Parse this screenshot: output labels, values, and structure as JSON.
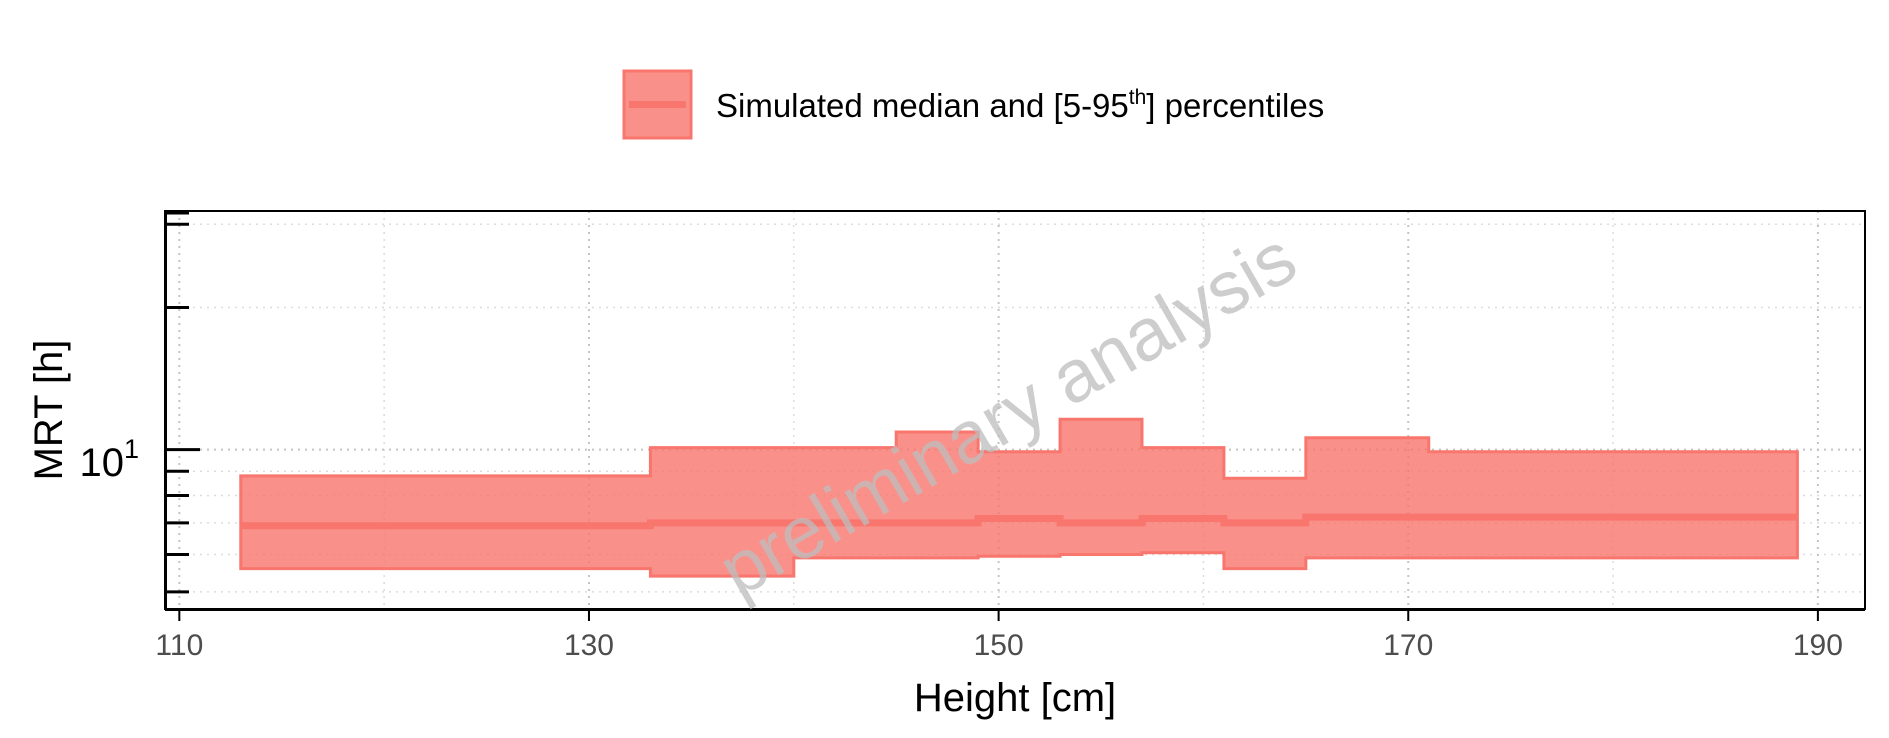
{
  "chart_data": {
    "type": "area",
    "xlabel": "Height [cm]",
    "ylabel": "MRT [h]",
    "xlim": [
      109.3,
      192.3
    ],
    "xticks": [
      "110",
      "130",
      "150",
      "170",
      "190"
    ],
    "xtick_values": [
      110,
      130,
      150,
      170,
      190
    ],
    "yscale": "log",
    "ylim": [
      4.6,
      32
    ],
    "ytick_label": {
      "base": "10",
      "exponent": "1"
    },
    "ytick_value": 10,
    "grid": true,
    "legend": {
      "position": "top",
      "text_before": "Simulated median and [5-95",
      "superscript": "th",
      "text_after": "] percentiles"
    },
    "watermark": "preliminary analysis",
    "colors": {
      "band_fill": "#f8766d",
      "band_line": "#f8766d"
    },
    "series": [
      {
        "name": "Simulated median and [5-95th] percentiles",
        "steps": [
          {
            "x0": 113,
            "x1": 133,
            "lower": 5.6,
            "median": 6.9,
            "upper": 8.8
          },
          {
            "x0": 133,
            "x1": 140,
            "lower": 5.4,
            "median": 7.0,
            "upper": 10.1
          },
          {
            "x0": 140,
            "x1": 145,
            "lower": 5.9,
            "median": 7.0,
            "upper": 10.1
          },
          {
            "x0": 145,
            "x1": 149,
            "lower": 5.9,
            "median": 7.0,
            "upper": 10.9
          },
          {
            "x0": 149,
            "x1": 153,
            "lower": 5.95,
            "median": 7.15,
            "upper": 9.9
          },
          {
            "x0": 153,
            "x1": 157,
            "lower": 6.0,
            "median": 7.0,
            "upper": 11.6
          },
          {
            "x0": 157,
            "x1": 161,
            "lower": 6.05,
            "median": 7.15,
            "upper": 10.1
          },
          {
            "x0": 161,
            "x1": 165,
            "lower": 5.6,
            "median": 7.0,
            "upper": 8.7
          },
          {
            "x0": 165,
            "x1": 171,
            "lower": 5.9,
            "median": 7.2,
            "upper": 10.6
          },
          {
            "x0": 171,
            "x1": 189,
            "lower": 5.9,
            "median": 7.2,
            "upper": 9.9
          }
        ]
      }
    ]
  }
}
